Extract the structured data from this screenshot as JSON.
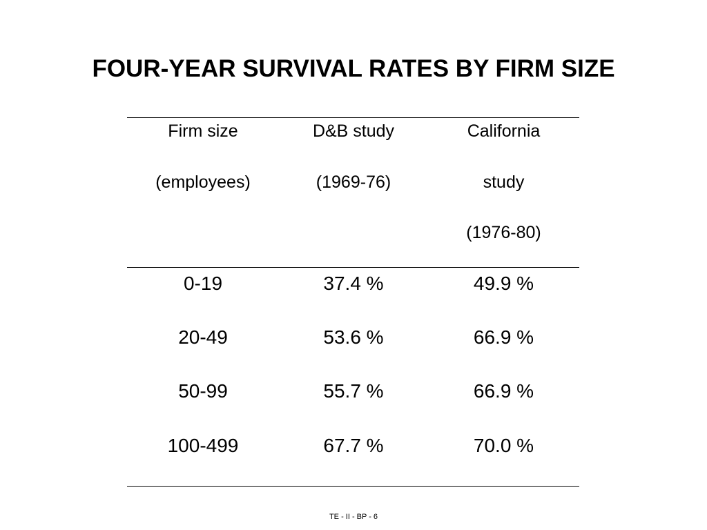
{
  "slide": {
    "title": "FOUR-YEAR SURVIVAL RATES BY FIRM SIZE",
    "footer": "TE - II - BP - 6"
  },
  "table": {
    "headers": [
      [
        "Firm size",
        "(employees)",
        ""
      ],
      [
        "D&B study",
        "(1969-76)",
        ""
      ],
      [
        "California",
        "study",
        "(1976-80)"
      ]
    ],
    "rows": [
      [
        "0-19",
        "37.4 %",
        "49.9 %"
      ],
      [
        "20-49",
        "53.6 %",
        "66.9 %"
      ],
      [
        "50-99",
        "55.7 %",
        "66.9 %"
      ],
      [
        "100-499",
        "67.7 %",
        "70.0 %"
      ]
    ]
  }
}
